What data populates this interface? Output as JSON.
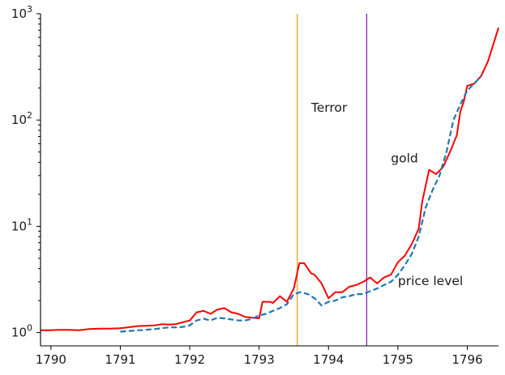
{
  "chart_data": {
    "type": "line",
    "title": "",
    "xlabel": "",
    "ylabel": "",
    "xscale": "linear",
    "yscale": "log",
    "xlim": [
      1789.85,
      1796.45
    ],
    "ylim": [
      0.75,
      1000
    ],
    "grid": false,
    "x_ticks": [
      1790,
      1791,
      1792,
      1793,
      1794,
      1795,
      1796
    ],
    "x_tick_labels": [
      "1790",
      "1791",
      "1792",
      "1793",
      "1794",
      "1795",
      "1796"
    ],
    "y_ticks": [
      1,
      10,
      100,
      1000
    ],
    "y_tick_labels": [
      {
        "base": "10",
        "exp": "0"
      },
      {
        "base": "10",
        "exp": "1"
      },
      {
        "base": "10",
        "exp": "2"
      },
      {
        "base": "10",
        "exp": "3"
      }
    ],
    "vlines": [
      {
        "x": 1793.55,
        "color": "#e69a12"
      },
      {
        "x": 1794.55,
        "color": "#7a0fb0"
      }
    ],
    "annotations": [
      {
        "text": "Terror",
        "x": 1793.75,
        "y": 120
      },
      {
        "text": "gold",
        "x": 1794.9,
        "y": 40
      },
      {
        "text": "price level",
        "x": 1795.0,
        "y": 2.8
      }
    ],
    "series": [
      {
        "style": "solid",
        "color": "#ff0000",
        "x": [
          1789.85,
          1790.0,
          1790.1,
          1790.25,
          1790.4,
          1790.55,
          1790.7,
          1790.85,
          1791.0,
          1791.1,
          1791.25,
          1791.35,
          1791.5,
          1791.6,
          1791.7,
          1791.8,
          1791.9,
          1792.0,
          1792.1,
          1792.2,
          1792.3,
          1792.4,
          1792.5,
          1792.6,
          1792.7,
          1792.8,
          1792.9,
          1793.0,
          1793.05,
          1793.15,
          1793.2,
          1793.3,
          1793.4,
          1793.5,
          1793.58,
          1793.65,
          1793.75,
          1793.8,
          1793.9,
          1794.0,
          1794.1,
          1794.2,
          1794.3,
          1794.4,
          1794.5,
          1794.6,
          1794.7,
          1794.8,
          1794.9,
          1795.0,
          1795.1,
          1795.2,
          1795.3,
          1795.35,
          1795.45,
          1795.55,
          1795.65,
          1795.75,
          1795.85,
          1795.9,
          1795.95,
          1796.0,
          1796.1,
          1796.2,
          1796.3,
          1796.45
        ],
        "y": [
          1.05,
          1.05,
          1.06,
          1.06,
          1.05,
          1.08,
          1.09,
          1.09,
          1.1,
          1.12,
          1.15,
          1.16,
          1.17,
          1.2,
          1.19,
          1.2,
          1.25,
          1.3,
          1.55,
          1.6,
          1.5,
          1.65,
          1.7,
          1.55,
          1.5,
          1.4,
          1.38,
          1.36,
          1.95,
          1.95,
          1.9,
          2.2,
          1.95,
          2.6,
          4.5,
          4.5,
          3.6,
          3.5,
          2.9,
          2.1,
          2.4,
          2.4,
          2.7,
          2.8,
          3.0,
          3.3,
          2.9,
          3.3,
          3.5,
          4.6,
          5.3,
          6.8,
          9.5,
          17,
          34,
          31,
          36,
          50,
          72,
          120,
          150,
          210,
          220,
          260,
          360,
          740
        ]
      },
      {
        "style": "dashed",
        "color": "#1f77b4",
        "x": [
          1791.0,
          1791.1,
          1791.25,
          1791.35,
          1791.5,
          1791.6,
          1791.7,
          1791.8,
          1791.9,
          1792.0,
          1792.1,
          1792.2,
          1792.3,
          1792.4,
          1792.5,
          1792.6,
          1792.7,
          1792.8,
          1792.9,
          1793.0,
          1793.1,
          1793.2,
          1793.3,
          1793.4,
          1793.5,
          1793.6,
          1793.7,
          1793.8,
          1793.9,
          1794.0,
          1794.1,
          1794.2,
          1794.3,
          1794.4,
          1794.5,
          1794.6,
          1794.7,
          1794.8,
          1794.9,
          1795.0,
          1795.1,
          1795.2,
          1795.3,
          1795.4,
          1795.5,
          1795.6,
          1795.7,
          1795.8,
          1795.9,
          1796.0,
          1796.1,
          1796.2
        ],
        "y": [
          1.02,
          1.03,
          1.05,
          1.06,
          1.08,
          1.1,
          1.12,
          1.12,
          1.13,
          1.17,
          1.3,
          1.35,
          1.3,
          1.38,
          1.36,
          1.33,
          1.3,
          1.3,
          1.35,
          1.45,
          1.5,
          1.6,
          1.7,
          1.85,
          2.3,
          2.4,
          2.3,
          2.1,
          1.8,
          1.95,
          2.0,
          2.15,
          2.2,
          2.3,
          2.3,
          2.45,
          2.6,
          2.8,
          3.0,
          3.5,
          4.3,
          5.5,
          8.0,
          15,
          22,
          30,
          50,
          100,
          140,
          190,
          220,
          260
        ]
      }
    ]
  }
}
